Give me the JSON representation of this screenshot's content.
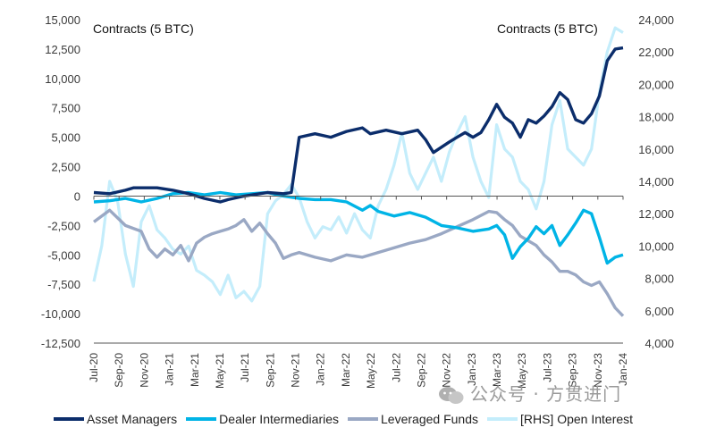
{
  "chart_data": {
    "type": "line",
    "title": "",
    "left_axis_label": "Contracts (5 BTC)",
    "right_axis_label": "Contracts (5 BTC)",
    "ylim_left": [
      -12500,
      15000
    ],
    "yticks_left": [
      "15,000",
      "12,500",
      "10,000",
      "7,500",
      "5,000",
      "2,500",
      "0",
      "-2,500",
      "-5,000",
      "-7,500",
      "-10,000",
      "-12,500"
    ],
    "ylim_right": [
      4000,
      24000
    ],
    "yticks_right": [
      "24,000",
      "22,000",
      "20,000",
      "18,000",
      "16,000",
      "14,000",
      "12,000",
      "10,000",
      "8,000",
      "6,000",
      "4,000"
    ],
    "x_tick_labels": [
      "Jul-20",
      "Sep-20",
      "Nov-20",
      "Jan-21",
      "Mar-21",
      "May-21",
      "Jul-21",
      "Sep-21",
      "Nov-21",
      "Jan-22",
      "Mar-22",
      "May-22",
      "Jul-22",
      "Sep-22",
      "Nov-22",
      "Jan-23",
      "Mar-23",
      "May-23",
      "Jul-23",
      "Sep-23",
      "Nov-23",
      "Jan-24"
    ],
    "x_start": "2020-07",
    "x_end": "2024-01",
    "series": [
      {
        "name": "Asset Managers",
        "axis": "left",
        "color": "#0b2d6b",
        "points": [
          [
            0,
            300
          ],
          [
            2,
            200
          ],
          [
            4,
            500
          ],
          [
            5,
            700
          ],
          [
            8,
            700
          ],
          [
            10,
            500
          ],
          [
            12,
            200
          ],
          [
            14,
            -200
          ],
          [
            16,
            -500
          ],
          [
            17,
            -300
          ],
          [
            19,
            0
          ],
          [
            21,
            200
          ],
          [
            22,
            300
          ],
          [
            24,
            200
          ],
          [
            25,
            300
          ],
          [
            26,
            5000
          ],
          [
            28,
            5300
          ],
          [
            30,
            5000
          ],
          [
            32,
            5500
          ],
          [
            34,
            5800
          ],
          [
            35,
            5300
          ],
          [
            37,
            5600
          ],
          [
            39,
            5300
          ],
          [
            41,
            5600
          ],
          [
            42,
            4800
          ],
          [
            43,
            3700
          ],
          [
            45,
            4600
          ],
          [
            46,
            5000
          ],
          [
            47,
            5400
          ],
          [
            48,
            5000
          ],
          [
            49,
            5400
          ],
          [
            50,
            6500
          ],
          [
            51,
            7800
          ],
          [
            52,
            6700
          ],
          [
            53,
            6200
          ],
          [
            54,
            5000
          ],
          [
            55,
            6500
          ],
          [
            56,
            6200
          ],
          [
            57,
            6800
          ],
          [
            58,
            7600
          ],
          [
            59,
            8800
          ],
          [
            60,
            8200
          ],
          [
            61,
            6500
          ],
          [
            62,
            6200
          ],
          [
            63,
            7000
          ],
          [
            64,
            8500
          ],
          [
            65,
            11500
          ],
          [
            66,
            12500
          ],
          [
            67,
            12600
          ]
        ]
      },
      {
        "name": "Dealer Intermediaries",
        "axis": "left",
        "color": "#00b4e6",
        "points": [
          [
            0,
            -500
          ],
          [
            2,
            -400
          ],
          [
            4,
            -200
          ],
          [
            6,
            -500
          ],
          [
            8,
            -200
          ],
          [
            10,
            200
          ],
          [
            12,
            300
          ],
          [
            14,
            100
          ],
          [
            16,
            300
          ],
          [
            18,
            100
          ],
          [
            20,
            200
          ],
          [
            22,
            300
          ],
          [
            24,
            0
          ],
          [
            26,
            -200
          ],
          [
            28,
            -300
          ],
          [
            30,
            -300
          ],
          [
            32,
            -500
          ],
          [
            34,
            -1200
          ],
          [
            35,
            -800
          ],
          [
            36,
            -1300
          ],
          [
            38,
            -1700
          ],
          [
            40,
            -1400
          ],
          [
            42,
            -1800
          ],
          [
            44,
            -2500
          ],
          [
            46,
            -2700
          ],
          [
            48,
            -3000
          ],
          [
            50,
            -2800
          ],
          [
            51,
            -2500
          ],
          [
            52,
            -3300
          ],
          [
            53,
            -5300
          ],
          [
            54,
            -4300
          ],
          [
            55,
            -3600
          ],
          [
            56,
            -2600
          ],
          [
            57,
            -3200
          ],
          [
            58,
            -2500
          ],
          [
            59,
            -4200
          ],
          [
            60,
            -3300
          ],
          [
            61,
            -2300
          ],
          [
            62,
            -1200
          ],
          [
            63,
            -1500
          ],
          [
            64,
            -3500
          ],
          [
            65,
            -5700
          ],
          [
            66,
            -5200
          ],
          [
            67,
            -5000
          ]
        ]
      },
      {
        "name": "Leveraged Funds",
        "axis": "left",
        "color": "#9aa8c4",
        "points": [
          [
            0,
            -2200
          ],
          [
            2,
            -1200
          ],
          [
            4,
            -2500
          ],
          [
            6,
            -3000
          ],
          [
            7,
            -4500
          ],
          [
            8,
            -5200
          ],
          [
            9,
            -4500
          ],
          [
            10,
            -5000
          ],
          [
            11,
            -4200
          ],
          [
            12,
            -5500
          ],
          [
            13,
            -4000
          ],
          [
            14,
            -3500
          ],
          [
            15,
            -3200
          ],
          [
            16,
            -3000
          ],
          [
            17,
            -2800
          ],
          [
            18,
            -2500
          ],
          [
            19,
            -2000
          ],
          [
            20,
            -3000
          ],
          [
            21,
            -2300
          ],
          [
            22,
            -3200
          ],
          [
            23,
            -4000
          ],
          [
            24,
            -5300
          ],
          [
            25,
            -5000
          ],
          [
            26,
            -4800
          ],
          [
            28,
            -5200
          ],
          [
            30,
            -5500
          ],
          [
            32,
            -5000
          ],
          [
            34,
            -5200
          ],
          [
            36,
            -4800
          ],
          [
            38,
            -4400
          ],
          [
            40,
            -4000
          ],
          [
            42,
            -3700
          ],
          [
            44,
            -3200
          ],
          [
            46,
            -2600
          ],
          [
            48,
            -2000
          ],
          [
            50,
            -1300
          ],
          [
            51,
            -1400
          ],
          [
            52,
            -2000
          ],
          [
            53,
            -2500
          ],
          [
            54,
            -3400
          ],
          [
            55,
            -3800
          ],
          [
            56,
            -4200
          ],
          [
            57,
            -5000
          ],
          [
            58,
            -5600
          ],
          [
            59,
            -6400
          ],
          [
            60,
            -6400
          ],
          [
            61,
            -6700
          ],
          [
            62,
            -7300
          ],
          [
            63,
            -7600
          ],
          [
            64,
            -7300
          ],
          [
            65,
            -8300
          ],
          [
            66,
            -9500
          ],
          [
            67,
            -10200
          ]
        ]
      },
      {
        "name": "[RHS] Open Interest",
        "axis": "right",
        "color": "#c4edfb",
        "points": [
          [
            0,
            7800
          ],
          [
            1,
            10000
          ],
          [
            2,
            14000
          ],
          [
            3,
            12800
          ],
          [
            4,
            9500
          ],
          [
            5,
            7500
          ],
          [
            6,
            11500
          ],
          [
            7,
            12500
          ],
          [
            8,
            11000
          ],
          [
            9,
            10500
          ],
          [
            10,
            9800
          ],
          [
            11,
            9500
          ],
          [
            12,
            10000
          ],
          [
            13,
            8500
          ],
          [
            14,
            8200
          ],
          [
            15,
            7800
          ],
          [
            16,
            7000
          ],
          [
            17,
            8200
          ],
          [
            18,
            6800
          ],
          [
            19,
            7200
          ],
          [
            20,
            6600
          ],
          [
            21,
            7500
          ],
          [
            22,
            12000
          ],
          [
            23,
            12800
          ],
          [
            24,
            13200
          ],
          [
            25,
            13800
          ],
          [
            26,
            13000
          ],
          [
            27,
            11500
          ],
          [
            28,
            10500
          ],
          [
            29,
            11200
          ],
          [
            30,
            11000
          ],
          [
            31,
            11800
          ],
          [
            32,
            10800
          ],
          [
            33,
            12000
          ],
          [
            34,
            11000
          ],
          [
            35,
            10500
          ],
          [
            36,
            12500
          ],
          [
            37,
            13500
          ],
          [
            38,
            15000
          ],
          [
            39,
            17000
          ],
          [
            40,
            14500
          ],
          [
            41,
            13500
          ],
          [
            42,
            14500
          ],
          [
            43,
            15500
          ],
          [
            44,
            14000
          ],
          [
            45,
            15800
          ],
          [
            46,
            17000
          ],
          [
            47,
            18000
          ],
          [
            48,
            15500
          ],
          [
            49,
            14000
          ],
          [
            50,
            13000
          ],
          [
            51,
            17500
          ],
          [
            52,
            16000
          ],
          [
            53,
            15500
          ],
          [
            54,
            14000
          ],
          [
            55,
            13500
          ],
          [
            56,
            12300
          ],
          [
            57,
            14000
          ],
          [
            58,
            17500
          ],
          [
            59,
            19000
          ],
          [
            60,
            16000
          ],
          [
            61,
            15500
          ],
          [
            62,
            15000
          ],
          [
            63,
            16000
          ],
          [
            64,
            19500
          ],
          [
            65,
            22000
          ],
          [
            66,
            23500
          ],
          [
            67,
            23200
          ]
        ]
      }
    ],
    "x_count": 68,
    "grid": false,
    "legend_position": "bottom"
  },
  "watermark": "公众号 · 方贯进门"
}
